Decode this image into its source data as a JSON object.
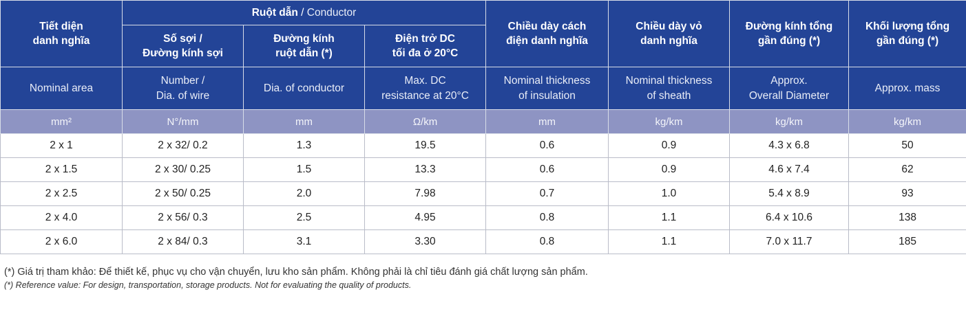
{
  "columns": {
    "area": {
      "vi": [
        "Tiết diện",
        "danh nghĩa"
      ],
      "en": [
        "Nominal area"
      ],
      "unit": "mm²"
    },
    "conductor_group": {
      "vi": "Ruột dẫn",
      "en": "Conductor"
    },
    "wire": {
      "vi": [
        "Số sợi /",
        "Đường kính sợi"
      ],
      "en": [
        "Number /",
        "Dia. of wire"
      ],
      "unit": "N°/mm"
    },
    "dia": {
      "vi": [
        "Đường kính",
        "ruột dẫn (*)"
      ],
      "en": [
        "Dia. of conductor"
      ],
      "unit": "mm"
    },
    "resistance": {
      "vi": [
        "Điện trở DC",
        "tối đa ở 20°C"
      ],
      "en": [
        "Max. DC",
        "resistance at 20°C"
      ],
      "unit": "Ω/km"
    },
    "insulation": {
      "vi": [
        "Chiều dày cách",
        "điện danh nghĩa"
      ],
      "en": [
        "Nominal thickness",
        "of insulation"
      ],
      "unit": "mm"
    },
    "sheath": {
      "vi": [
        "Chiều dày vỏ",
        "danh nghĩa"
      ],
      "en": [
        "Nominal thickness",
        "of sheath"
      ],
      "unit": "kg/km"
    },
    "diameter": {
      "vi": [
        "Đường kính tổng",
        "gần đúng (*)"
      ],
      "en": [
        "Approx.",
        "Overall Diameter"
      ],
      "unit": "kg/km"
    },
    "mass": {
      "vi": [
        "Khối lượng tổng",
        "gần đúng (*)"
      ],
      "en": [
        "Approx. mass"
      ],
      "unit": "kg/km"
    }
  },
  "rows": [
    [
      "2 x 1",
      "2 x 32/ 0.2",
      "1.3",
      "19.5",
      "0.6",
      "0.9",
      "4.3 x 6.8",
      "50"
    ],
    [
      "2 x 1.5",
      "2 x 30/ 0.25",
      "1.5",
      "13.3",
      "0.6",
      "0.9",
      "4.6 x 7.4",
      "62"
    ],
    [
      "2 x 2.5",
      "2 x 50/ 0.25",
      "2.0",
      "7.98",
      "0.7",
      "1.0",
      "5.4 x 8.9",
      "93"
    ],
    [
      "2 x 4.0",
      "2 x 56/ 0.3",
      "2.5",
      "4.95",
      "0.8",
      "1.1",
      "6.4 x 10.6",
      "138"
    ],
    [
      "2 x 6.0",
      "2 x 84/ 0.3",
      "3.1",
      "3.30",
      "0.8",
      "1.1",
      "7.0 x 11.7",
      "185"
    ]
  ],
  "footnotes": {
    "vi": "(*) Giá trị tham khảo: Để thiết kế, phục vụ cho vận chuyển, lưu kho sản phẩm. Không phải là chỉ tiêu đánh giá chất lượng sản phẩm.",
    "en": "(*) Reference value: For design, transportation, storage products. Not for evaluating the quality of products."
  }
}
